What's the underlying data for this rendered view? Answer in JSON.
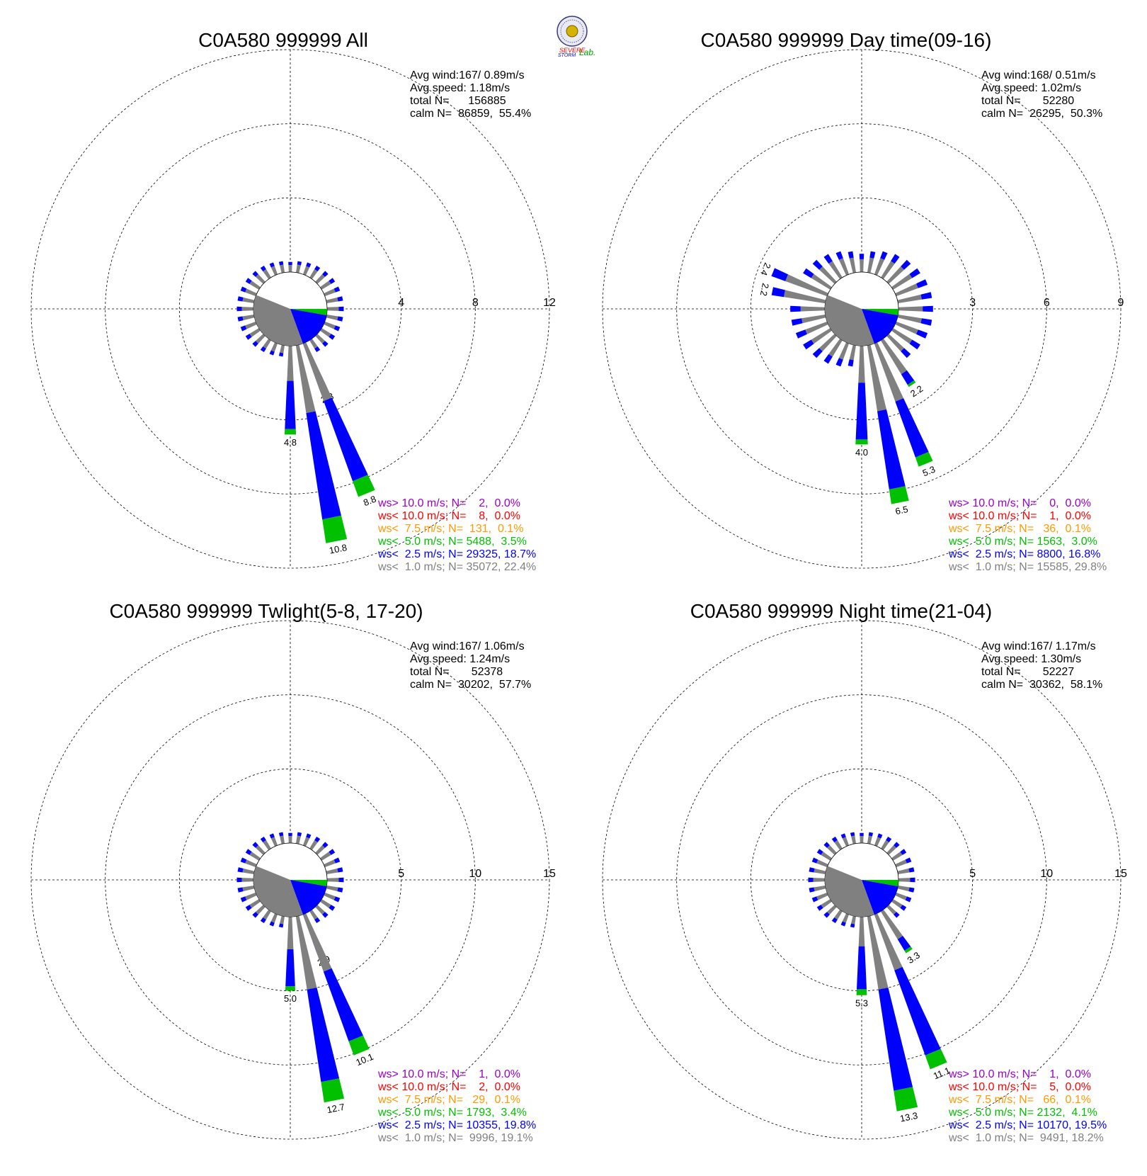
{
  "logo": {
    "text_top": "SEVERE",
    "text_mid": "STORM",
    "text_lab": "Lab."
  },
  "colors": {
    "gray": "#808080",
    "blue": "#0000ff",
    "green": "#00c000",
    "orange": "#ff9900",
    "red": "#ff0000",
    "purple": "#9900cc",
    "hub": "#808080",
    "hub_blue": "#0000ff",
    "hub_green": "#00c000"
  },
  "chart_data": [
    {
      "type": "polar-bar",
      "title": "C0A580 999999 All",
      "stats": {
        "avg_wind": "Avg wind:167/ 0.89m/s",
        "avg_speed": "Avg speed: 1.18m/s",
        "total": "total N=      156885",
        "calm": "calm N=  86859,  55.4%"
      },
      "rings": [
        4,
        8,
        12
      ],
      "ring_labels": [
        "4",
        "8",
        "12"
      ],
      "bars": [
        {
          "deg": 157.5,
          "total": 2.8,
          "blue": 0.7,
          "green": 0.15,
          "label": "2.8"
        },
        {
          "deg": 168.75,
          "total": 10.8,
          "blue": 5.8,
          "green": 1.3,
          "label": "10.8"
        },
        {
          "deg": 157.5,
          "total": 8.8,
          "blue": 4.6,
          "green": 0.9,
          "label": "8.8"
        },
        {
          "deg": 180,
          "total": 4.8,
          "blue": 2.6,
          "green": 0.3,
          "label": "4.8"
        }
      ],
      "legend": [
        {
          "text": "ws> 10.0 m/s; N=    2,  0.0%",
          "color": "#9900cc"
        },
        {
          "text": "ws< 10.0 m/s; N=    8,  0.0%",
          "color": "#ff0000"
        },
        {
          "text": "ws<  7.5 m/s; N=  131,  0.1%",
          "color": "#ff9900"
        },
        {
          "text": "ws<  5.0 m/s; N= 5488,  3.5%",
          "color": "#00c000"
        },
        {
          "text": "ws<  2.5 m/s; N= 29325, 18.7%",
          "color": "#0000ff"
        },
        {
          "text": "ws<  1.0 m/s; N= 35072, 22.4%",
          "color": "#808080"
        }
      ]
    },
    {
      "type": "polar-bar",
      "title": "C0A580 999999 Day time(09-16)",
      "stats": {
        "avg_wind": "Avg wind:168/ 0.51m/s",
        "avg_speed": "Avg speed: 1.02m/s",
        "total": "total N=       52280",
        "calm": "calm N=  26295,  50.3%"
      },
      "rings": [
        3,
        6,
        9
      ],
      "ring_labels": [
        "3",
        "6",
        "9"
      ],
      "bars": [
        {
          "deg": 146.25,
          "total": 2.2,
          "blue": 0.5,
          "green": 0.1,
          "label": "2.2"
        },
        {
          "deg": 168.75,
          "total": 6.5,
          "blue": 3.2,
          "green": 0.6,
          "label": "6.5"
        },
        {
          "deg": 157.5,
          "total": 5.3,
          "blue": 2.4,
          "green": 0.4,
          "label": "5.3"
        },
        {
          "deg": 180,
          "total": 4.0,
          "blue": 2.3,
          "green": 0.2,
          "label": "4.0"
        },
        {
          "deg": 292.5,
          "total": 2.4,
          "blue": 0.6,
          "green": 0.0,
          "label": "2.4"
        },
        {
          "deg": 281.25,
          "total": 2.2,
          "blue": 0.5,
          "green": 0.0,
          "label": "2.2"
        }
      ],
      "legend": [
        {
          "text": "ws> 10.0 m/s; N=    0,  0.0%",
          "color": "#9900cc"
        },
        {
          "text": "ws< 10.0 m/s; N=    1,  0.0%",
          "color": "#ff0000"
        },
        {
          "text": "ws<  7.5 m/s; N=   36,  0.1%",
          "color": "#ff9900"
        },
        {
          "text": "ws<  5.0 m/s; N= 1563,  3.0%",
          "color": "#00c000"
        },
        {
          "text": "ws<  2.5 m/s; N= 8800, 16.8%",
          "color": "#0000ff"
        },
        {
          "text": "ws<  1.0 m/s; N= 15585, 29.8%",
          "color": "#808080"
        }
      ]
    },
    {
      "type": "polar-bar",
      "title": "C0A580 999999 Twlight(5-8, 17-20)",
      "stats": {
        "avg_wind": "Avg wind:167/ 1.06m/s",
        "avg_speed": "Avg speed: 1.24m/s",
        "total": "total N=       52378",
        "calm": "calm N=  30202,  57.7%"
      },
      "rings": [
        5,
        10,
        15
      ],
      "ring_labels": [
        "5",
        "10",
        "15"
      ],
      "bars": [
        {
          "deg": 157.5,
          "total": 2.9,
          "blue": 0.8,
          "green": 0.2,
          "label": "2.9"
        },
        {
          "deg": 168.75,
          "total": 12.7,
          "blue": 6.3,
          "green": 1.4,
          "label": "12.7"
        },
        {
          "deg": 157.5,
          "total": 10.1,
          "blue": 5.0,
          "green": 1.0,
          "label": "10.1"
        },
        {
          "deg": 180,
          "total": 5.0,
          "blue": 2.5,
          "green": 0.3,
          "label": "5.0"
        }
      ],
      "legend": [
        {
          "text": "ws> 10.0 m/s; N=    1,  0.0%",
          "color": "#9900cc"
        },
        {
          "text": "ws< 10.0 m/s; N=    2,  0.0%",
          "color": "#ff0000"
        },
        {
          "text": "ws<  7.5 m/s; N=   29,  0.1%",
          "color": "#ff9900"
        },
        {
          "text": "ws<  5.0 m/s; N= 1793,  3.4%",
          "color": "#00c000"
        },
        {
          "text": "ws<  2.5 m/s; N= 10355, 19.8%",
          "color": "#0000ff"
        },
        {
          "text": "ws<  1.0 m/s; N=  9996, 19.1%",
          "color": "#808080"
        }
      ]
    },
    {
      "type": "polar-bar",
      "title": "C0A580 999999 Night time(21-04)",
      "stats": {
        "avg_wind": "Avg wind:167/ 1.17m/s",
        "avg_speed": "Avg speed: 1.30m/s",
        "total": "total N=       52227",
        "calm": "calm N=  30362,  58.1%"
      },
      "rings": [
        5,
        10,
        15
      ],
      "ring_labels": [
        "5",
        "10",
        "15"
      ],
      "bars": [
        {
          "deg": 146.25,
          "total": 3.3,
          "blue": 0.9,
          "green": 0.2,
          "label": "3.3"
        },
        {
          "deg": 168.75,
          "total": 13.3,
          "blue": 6.9,
          "green": 1.4,
          "label": "13.3"
        },
        {
          "deg": 157.5,
          "total": 11.1,
          "blue": 6.1,
          "green": 1.0,
          "label": "11.1"
        },
        {
          "deg": 180,
          "total": 5.3,
          "blue": 2.9,
          "green": 0.4,
          "label": "5.3"
        }
      ],
      "legend": [
        {
          "text": "ws> 10.0 m/s; N=    1,  0.0%",
          "color": "#9900cc"
        },
        {
          "text": "ws< 10.0 m/s; N=    5,  0.0%",
          "color": "#ff0000"
        },
        {
          "text": "ws<  7.5 m/s; N=   66,  0.1%",
          "color": "#ff9900"
        },
        {
          "text": "ws<  5.0 m/s; N= 2132,  4.1%",
          "color": "#00c000"
        },
        {
          "text": "ws<  2.5 m/s; N= 10170, 19.5%",
          "color": "#0000ff"
        },
        {
          "text": "ws<  1.0 m/s; N=  9491, 18.2%",
          "color": "#808080"
        }
      ]
    }
  ]
}
